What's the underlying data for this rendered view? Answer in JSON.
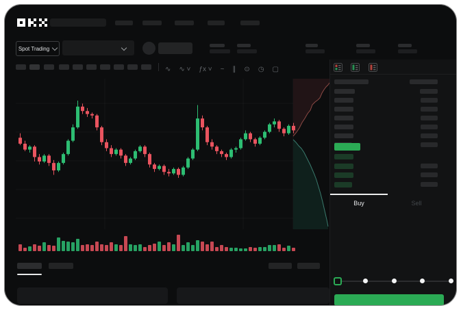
{
  "theme": {
    "bg": "#0c0d0e",
    "panel": "#131415",
    "green": "#2dbd72",
    "red": "#e9545f",
    "accent_green": "#2bab55",
    "bid_row_green": "#1b3b27",
    "text": "#e8eaec",
    "text_dim": "#4d5256",
    "depth_ask_line": "#8d4a45",
    "depth_bid_line": "#3a7a6d",
    "depth_ask_fill": "#211416",
    "depth_bid_fill": "#0f201c",
    "grid_line": "rgba(255,255,255,0.035)"
  },
  "header": {
    "logo_text": "OKX"
  },
  "market_selector": {
    "label": "Spot Trading"
  },
  "chart_toolbar": {
    "icons": [
      {
        "name": "indicator-wave-icon",
        "glyph": "∿"
      },
      {
        "name": "indicator-wave-dropdown-icon",
        "glyph": "∿ ˅"
      },
      {
        "name": "function-dropdown-icon",
        "glyph": "ƒx ˅"
      },
      {
        "name": "smooth-line-icon",
        "glyph": "~"
      },
      {
        "name": "compare-icon",
        "glyph": "∥"
      },
      {
        "name": "camera-icon",
        "glyph": "⊙"
      },
      {
        "name": "clock-icon",
        "glyph": "◷"
      },
      {
        "name": "fullscreen-icon",
        "glyph": "▢"
      }
    ]
  },
  "order_panel": {
    "tabs": {
      "buy": "Buy",
      "sell": "Sell"
    },
    "order_book": {
      "layout_icon_names": [
        "book-both-icon",
        "book-bids-icon",
        "book-asks-icon"
      ],
      "ask_rows": [
        {
          "l": 30,
          "r": 26
        },
        {
          "l": 28,
          "r": 25
        },
        {
          "l": 28,
          "r": 25
        },
        {
          "l": 28,
          "r": 25
        },
        {
          "l": 28,
          "r": 25
        },
        {
          "l": 28,
          "r": 25
        },
        {
          "l": 26,
          "r": 25
        }
      ],
      "last_price_bar_width": 38,
      "bid_rows": [
        {
          "l": 28,
          "r": 0
        },
        {
          "l": 28,
          "r": 25
        },
        {
          "l": 28,
          "r": 25
        },
        {
          "l": 26,
          "r": 25
        }
      ]
    },
    "slider": {
      "steps": 5,
      "active_index": 0
    }
  },
  "chart_data": {
    "type": "candlestick",
    "title": "",
    "note": "Skeleton trading chart; no numeric axis labels are rendered in the UI",
    "price_scale_norm": [
      0,
      100
    ],
    "candles": [
      [
        63,
        66,
        58,
        59
      ],
      [
        59,
        61,
        54,
        55
      ],
      [
        55,
        58,
        53,
        57
      ],
      [
        57,
        58,
        47,
        50
      ],
      [
        50,
        52,
        45,
        47
      ],
      [
        47,
        52,
        46,
        51
      ],
      [
        51,
        52,
        44,
        46
      ],
      [
        46,
        48,
        38,
        41
      ],
      [
        41,
        47,
        40,
        46
      ],
      [
        46,
        53,
        45,
        52
      ],
      [
        52,
        62,
        51,
        61
      ],
      [
        61,
        72,
        60,
        70
      ],
      [
        70,
        88,
        69,
        84
      ],
      [
        84,
        86,
        79,
        81
      ],
      [
        81,
        83,
        77,
        79
      ],
      [
        79,
        80,
        76,
        78
      ],
      [
        78,
        79,
        68,
        70
      ],
      [
        70,
        71,
        58,
        60
      ],
      [
        60,
        62,
        54,
        56
      ],
      [
        56,
        58,
        50,
        52
      ],
      [
        52,
        56,
        51,
        55
      ],
      [
        55,
        56,
        49,
        51
      ],
      [
        51,
        52,
        44,
        46
      ],
      [
        46,
        50,
        45,
        49
      ],
      [
        49,
        55,
        48,
        54
      ],
      [
        54,
        58,
        53,
        57
      ],
      [
        57,
        58,
        50,
        52
      ],
      [
        52,
        53,
        43,
        45
      ],
      [
        45,
        46,
        40,
        42
      ],
      [
        42,
        45,
        41,
        44
      ],
      [
        44,
        45,
        38,
        40
      ],
      [
        40,
        42,
        37,
        39
      ],
      [
        39,
        43,
        38,
        42
      ],
      [
        42,
        43,
        36,
        38
      ],
      [
        38,
        44,
        37,
        43
      ],
      [
        43,
        50,
        42,
        49
      ],
      [
        49,
        56,
        48,
        55
      ],
      [
        55,
        85,
        54,
        76
      ],
      [
        76,
        78,
        68,
        70
      ],
      [
        70,
        71,
        58,
        60
      ],
      [
        60,
        62,
        55,
        57
      ],
      [
        57,
        58,
        52,
        54
      ],
      [
        54,
        55,
        50,
        52
      ],
      [
        52,
        53,
        48,
        50
      ],
      [
        50,
        56,
        49,
        55
      ],
      [
        55,
        57,
        53,
        56
      ],
      [
        56,
        63,
        55,
        62
      ],
      [
        62,
        68,
        61,
        66
      ],
      [
        66,
        67,
        60,
        62
      ],
      [
        62,
        63,
        57,
        59
      ],
      [
        59,
        64,
        58,
        63
      ],
      [
        63,
        68,
        62,
        67
      ],
      [
        67,
        73,
        66,
        72
      ],
      [
        72,
        76,
        70,
        74
      ],
      [
        74,
        75,
        67,
        69
      ],
      [
        69,
        70,
        64,
        66
      ],
      [
        66,
        72,
        65,
        71
      ],
      [
        71,
        73,
        66,
        68
      ]
    ],
    "volume": [
      10,
      5,
      7,
      10,
      8,
      13,
      9,
      8,
      20,
      15,
      14,
      13,
      18,
      9,
      10,
      9,
      14,
      10,
      9,
      13,
      10,
      9,
      22,
      10,
      9,
      10,
      6,
      9,
      11,
      14,
      9,
      13,
      10,
      24,
      9,
      13,
      9,
      16,
      14,
      10,
      14,
      6,
      9,
      6,
      5,
      5,
      4,
      4,
      6,
      5,
      6,
      6,
      9,
      9,
      10,
      5,
      8,
      5
    ],
    "depth": {
      "asks": [
        [
          425,
          196
        ],
        [
          430,
          190
        ],
        [
          434,
          184
        ],
        [
          438,
          176
        ],
        [
          442,
          170
        ],
        [
          446,
          163
        ],
        [
          450,
          158
        ],
        [
          453,
          150
        ],
        [
          457,
          146
        ],
        [
          461,
          143
        ],
        [
          464,
          140
        ],
        [
          467,
          133
        ],
        [
          470,
          128
        ],
        [
          473,
          124
        ],
        [
          476,
          121
        ],
        [
          478,
          118
        ]
      ],
      "bids": [
        [
          425,
          201
        ],
        [
          429,
          205
        ],
        [
          433,
          210
        ],
        [
          437,
          214
        ],
        [
          441,
          220
        ],
        [
          444,
          226
        ],
        [
          447,
          232
        ],
        [
          450,
          238
        ],
        [
          453,
          245
        ],
        [
          456,
          252
        ],
        [
          459,
          260
        ],
        [
          462,
          270
        ],
        [
          465,
          280
        ],
        [
          468,
          292
        ],
        [
          471,
          305
        ],
        [
          474,
          318
        ],
        [
          476,
          328
        ]
      ]
    },
    "grid": {
      "h_lines": [
        148,
        190,
        232,
        274,
        316
      ],
      "v_lines": [
        150,
        352
      ]
    },
    "legend": [],
    "xlabel": "",
    "ylabel": ""
  }
}
